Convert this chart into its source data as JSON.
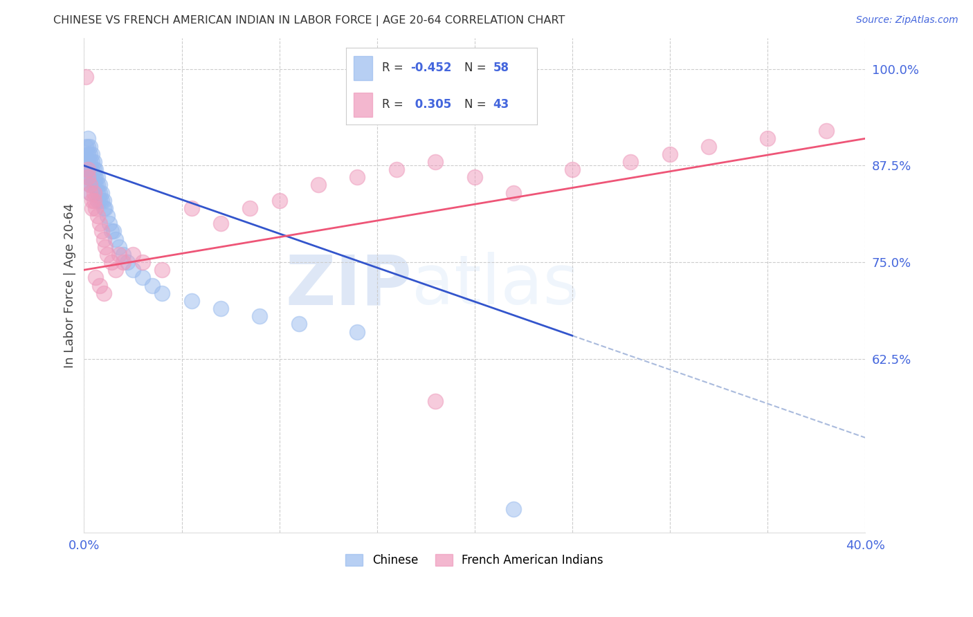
{
  "title": "CHINESE VS FRENCH AMERICAN INDIAN IN LABOR FORCE | AGE 20-64 CORRELATION CHART",
  "source": "Source: ZipAtlas.com",
  "ylabel": "In Labor Force | Age 20-64",
  "xlim": [
    0.0,
    0.4
  ],
  "ylim": [
    0.4,
    1.04
  ],
  "yticks": [
    0.625,
    0.75,
    0.875,
    1.0
  ],
  "ytick_labels": [
    "62.5%",
    "75.0%",
    "87.5%",
    "100.0%"
  ],
  "xticks": [
    0.0,
    0.05,
    0.1,
    0.15,
    0.2,
    0.25,
    0.3,
    0.35,
    0.4
  ],
  "xtick_labels": [
    "0.0%",
    "",
    "",
    "",
    "",
    "",
    "",
    "",
    "40.0%"
  ],
  "tick_color": "#4466dd",
  "chinese_color": "#99bbee",
  "french_color": "#ee99bb",
  "chinese_line_color": "#3355cc",
  "french_line_color": "#ee5577",
  "watermark_zip": "ZIP",
  "watermark_atlas": "atlas",
  "chinese_x": [
    0.001,
    0.001,
    0.001,
    0.002,
    0.002,
    0.002,
    0.002,
    0.002,
    0.002,
    0.003,
    0.003,
    0.003,
    0.003,
    0.003,
    0.003,
    0.003,
    0.004,
    0.004,
    0.004,
    0.004,
    0.004,
    0.005,
    0.005,
    0.005,
    0.005,
    0.006,
    0.006,
    0.006,
    0.007,
    0.007,
    0.007,
    0.007,
    0.008,
    0.008,
    0.008,
    0.009,
    0.009,
    0.01,
    0.01,
    0.011,
    0.012,
    0.013,
    0.014,
    0.015,
    0.016,
    0.018,
    0.02,
    0.022,
    0.025,
    0.03,
    0.035,
    0.04,
    0.055,
    0.07,
    0.09,
    0.11,
    0.14,
    0.22
  ],
  "chinese_y": [
    0.9,
    0.88,
    0.87,
    0.91,
    0.9,
    0.89,
    0.88,
    0.87,
    0.86,
    0.9,
    0.89,
    0.88,
    0.87,
    0.86,
    0.85,
    0.84,
    0.89,
    0.88,
    0.87,
    0.86,
    0.85,
    0.88,
    0.87,
    0.86,
    0.85,
    0.87,
    0.86,
    0.85,
    0.86,
    0.85,
    0.84,
    0.83,
    0.85,
    0.84,
    0.83,
    0.84,
    0.83,
    0.83,
    0.82,
    0.82,
    0.81,
    0.8,
    0.79,
    0.79,
    0.78,
    0.77,
    0.76,
    0.75,
    0.74,
    0.73,
    0.72,
    0.71,
    0.7,
    0.69,
    0.68,
    0.67,
    0.66,
    0.43
  ],
  "french_x": [
    0.001,
    0.002,
    0.002,
    0.003,
    0.003,
    0.004,
    0.004,
    0.005,
    0.005,
    0.006,
    0.007,
    0.008,
    0.009,
    0.01,
    0.011,
    0.012,
    0.014,
    0.016,
    0.018,
    0.02,
    0.025,
    0.03,
    0.04,
    0.055,
    0.07,
    0.085,
    0.1,
    0.12,
    0.14,
    0.16,
    0.18,
    0.2,
    0.22,
    0.25,
    0.28,
    0.3,
    0.32,
    0.35,
    0.38,
    0.006,
    0.008,
    0.01,
    0.18
  ],
  "french_y": [
    0.99,
    0.87,
    0.86,
    0.85,
    0.84,
    0.83,
    0.82,
    0.84,
    0.83,
    0.82,
    0.81,
    0.8,
    0.79,
    0.78,
    0.77,
    0.76,
    0.75,
    0.74,
    0.76,
    0.75,
    0.76,
    0.75,
    0.74,
    0.82,
    0.8,
    0.82,
    0.83,
    0.85,
    0.86,
    0.87,
    0.88,
    0.86,
    0.84,
    0.87,
    0.88,
    0.89,
    0.9,
    0.91,
    0.92,
    0.73,
    0.72,
    0.71,
    0.57
  ],
  "legend_items": [
    {
      "label_r": "R = -0.452",
      "label_n": "N = 58",
      "color": "#99bbee"
    },
    {
      "label_r": "R =  0.305",
      "label_n": "N = 43",
      "color": "#ee99bb"
    }
  ]
}
